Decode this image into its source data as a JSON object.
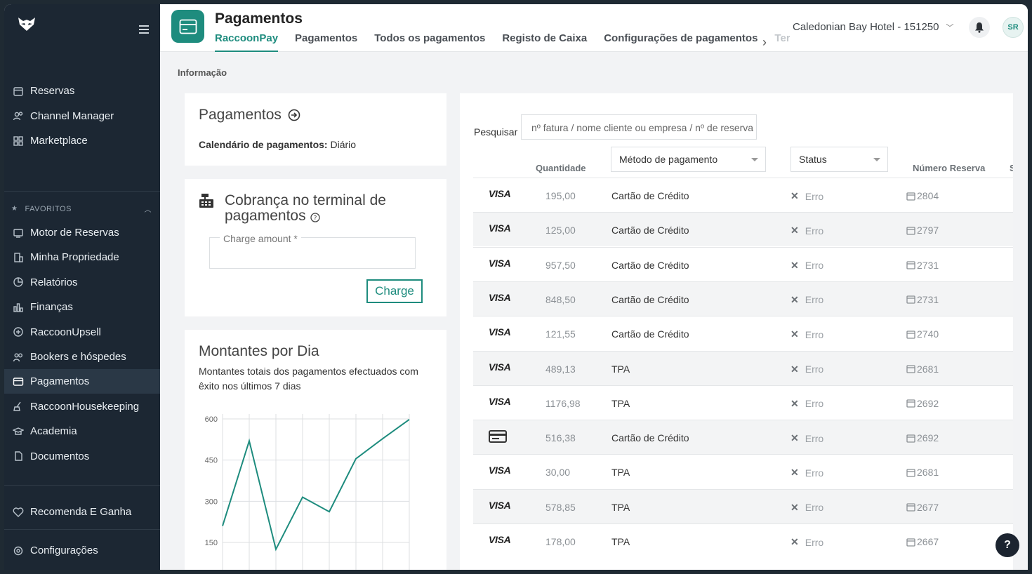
{
  "sidebar": {
    "main_items": [
      {
        "label": "Reservas",
        "icon": "calendar-icon"
      },
      {
        "label": "Channel Manager",
        "icon": "users-icon"
      },
      {
        "label": "Marketplace",
        "icon": "grid-icon"
      }
    ],
    "favorites_label": "FAVORITOS",
    "favorite_items": [
      {
        "label": "Motor de Reservas",
        "icon": "booking-engine-icon"
      },
      {
        "label": "Minha Propriedade",
        "icon": "building-icon"
      },
      {
        "label": "Relatórios",
        "icon": "pie-chart-icon"
      },
      {
        "label": "Finanças",
        "icon": "bar-chart-icon"
      },
      {
        "label": "RaccoonUpsell",
        "icon": "plus-circle-icon"
      },
      {
        "label": "Bookers e hóspedes",
        "icon": "people-icon"
      },
      {
        "label": "Pagamentos",
        "icon": "card-icon",
        "active": true
      },
      {
        "label": "RaccoonHousekeeping",
        "icon": "broom-icon"
      },
      {
        "label": "Academia",
        "icon": "academy-icon"
      },
      {
        "label": "Documentos",
        "icon": "document-icon"
      }
    ],
    "recommend": "Recomenda E Ganha",
    "settings": "Configurações"
  },
  "header": {
    "title": "Pagamentos",
    "tabs": [
      "RaccoonPay",
      "Pagamentos",
      "Todos os pagamentos",
      "Registo de Caixa",
      "Configurações de pagamentos",
      "Ter"
    ],
    "hotel": "Caledonian Bay Hotel - 151250",
    "avatar": "SR"
  },
  "section_label": "Informação",
  "payments_card": {
    "title": "Pagamentos",
    "calendar_label": "Calendário de pagamentos:",
    "calendar_value": "Diário"
  },
  "terminal_card": {
    "title_line1": "Cobrança no terminal de",
    "title_line2": "pagamentos",
    "field_label": "Charge amount *",
    "button": "Charge"
  },
  "chart_card": {
    "title": "Montantes por Dia",
    "subtitle": "Montantes totais dos pagamentos efectuados com êxito nos últimos 7 dias"
  },
  "chart_data": {
    "type": "line",
    "x": [
      1,
      2,
      3,
      4,
      5,
      6,
      7,
      8
    ],
    "values": [
      210,
      520,
      125,
      315,
      262,
      455,
      528,
      598
    ],
    "ylim": [
      150,
      600
    ],
    "yticks": [
      600,
      450,
      300,
      150
    ],
    "color": "#1e8c7e",
    "grid": true
  },
  "table": {
    "search_label": "Pesquisar",
    "search_placeholder": "nº fatura / nome cliente ou empresa / nº de reserva",
    "headers": {
      "amount": "Quantidade",
      "method": "Método de pagamento",
      "status": "Status",
      "reservation": "Número Reserva",
      "extra": "S"
    },
    "rows": [
      {
        "brand": "VISA",
        "amount": "195,00",
        "method": "Cartão de Crédito",
        "status": "Erro",
        "reservation": "2804"
      },
      {
        "brand": "VISA",
        "amount": "125,00",
        "method": "Cartão de Crédito",
        "status": "Erro",
        "reservation": "2797"
      },
      {
        "brand": "VISA",
        "amount": "957,50",
        "method": "Cartão de Crédito",
        "status": "Erro",
        "reservation": "2731"
      },
      {
        "brand": "VISA",
        "amount": "848,50",
        "method": "Cartão de Crédito",
        "status": "Erro",
        "reservation": "2731"
      },
      {
        "brand": "VISA",
        "amount": "121,55",
        "method": "Cartão de Crédito",
        "status": "Erro",
        "reservation": "2740"
      },
      {
        "brand": "VISA",
        "amount": "489,13",
        "method": "TPA",
        "status": "Erro",
        "reservation": "2681"
      },
      {
        "brand": "VISA",
        "amount": "1176,98",
        "method": "TPA",
        "status": "Erro",
        "reservation": "2692"
      },
      {
        "brand": "card",
        "amount": "516,38",
        "method": "Cartão de Crédito",
        "status": "Erro",
        "reservation": "2692"
      },
      {
        "brand": "VISA",
        "amount": "30,00",
        "method": "TPA",
        "status": "Erro",
        "reservation": "2681"
      },
      {
        "brand": "VISA",
        "amount": "578,85",
        "method": "TPA",
        "status": "Erro",
        "reservation": "2677"
      },
      {
        "brand": "VISA",
        "amount": "178,00",
        "method": "TPA",
        "status": "Erro",
        "reservation": "2667"
      }
    ]
  },
  "help_button": "?",
  "colors": {
    "accent": "#1e8c7e",
    "sidebar": "#1c2733"
  }
}
